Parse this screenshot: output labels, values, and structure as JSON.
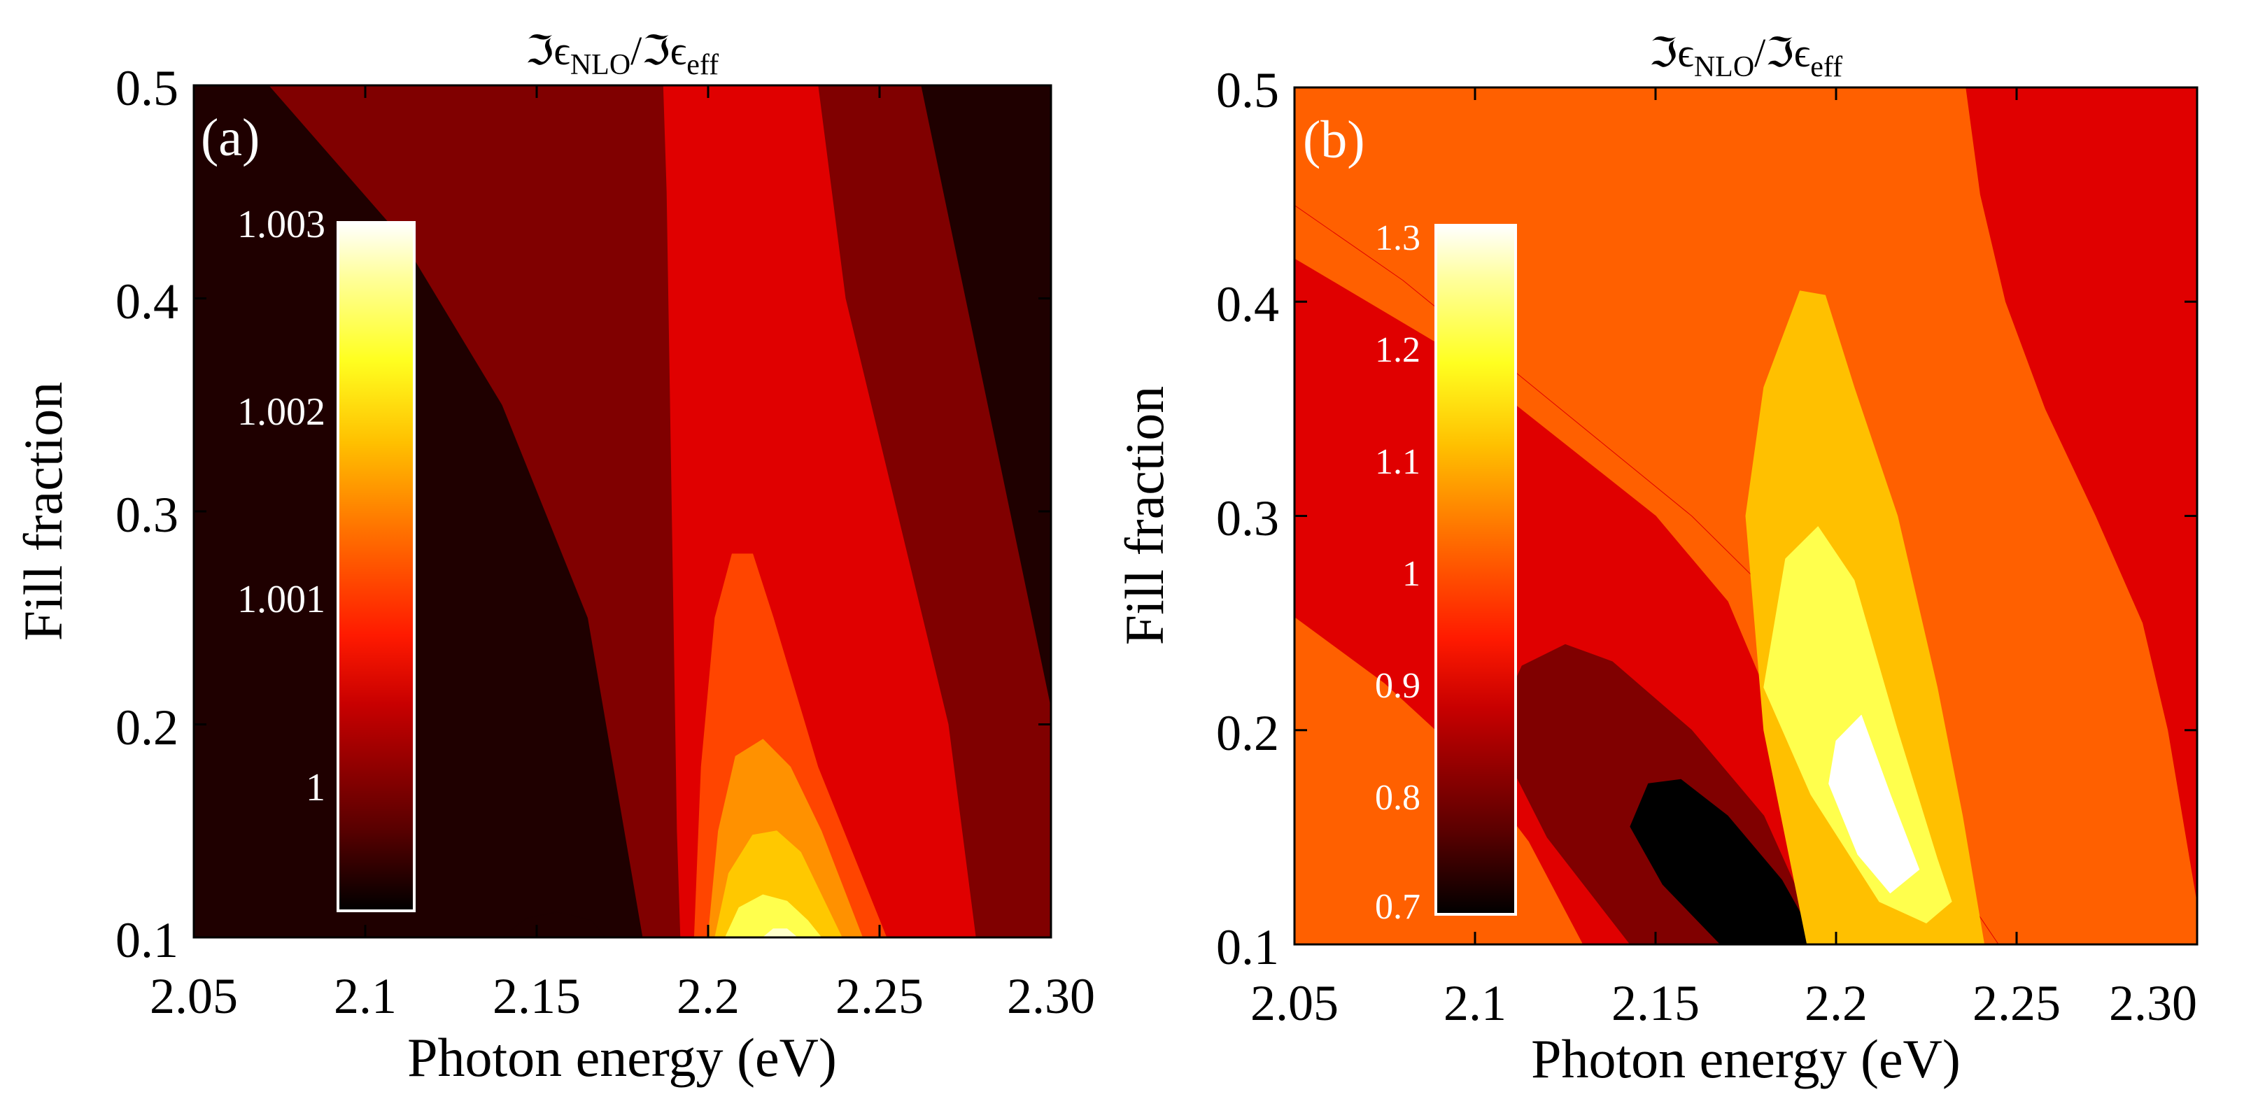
{
  "chart_data": [
    {
      "type": "contour",
      "panel_label": "(a)",
      "title": "ℑϵNLO/ℑϵeff",
      "title_parts": {
        "im1": "ℑϵ",
        "sub1": "NLO",
        "slash": "/",
        "im2": "ℑϵ",
        "sub2": "eff"
      },
      "xlabel": "Photon energy (eV)",
      "ylabel": "Fill fraction",
      "xlim": [
        2.05,
        2.3
      ],
      "ylim": [
        0.1,
        0.5
      ],
      "xticks": [
        2.05,
        2.1,
        2.15,
        2.2,
        2.25,
        2.3
      ],
      "xtick_labels": [
        "2.05",
        "2.1",
        "2.15",
        "2.2",
        "2.25",
        "2.30"
      ],
      "yticks": [
        0.1,
        0.2,
        0.3,
        0.4,
        0.5
      ],
      "ytick_labels": [
        "0.1",
        "0.2",
        "0.3",
        "0.4",
        "0.5"
      ],
      "colormap": "hot",
      "colorbar": {
        "range": [
          0.99955,
          1.00303
        ],
        "ticks": [
          1.0,
          1.001,
          1.002,
          1.003
        ],
        "tick_labels": [
          "1",
          "1.001",
          "1.002",
          "1.003"
        ]
      },
      "regions": [
        {
          "level": 0.99975,
          "color": "#1f0000",
          "points": [
            [
              2.05,
              0.1
            ],
            [
              2.05,
              0.5
            ],
            [
              2.072,
              0.5
            ],
            [
              2.11,
              0.43
            ],
            [
              2.14,
              0.35
            ],
            [
              2.165,
              0.25
            ],
            [
              2.181,
              0.1
            ]
          ]
        },
        {
          "level": 0.99975,
          "color": "#1f0000",
          "points": [
            [
              2.262,
              0.5
            ],
            [
              2.3,
              0.5
            ],
            [
              2.3,
              0.207
            ]
          ]
        },
        {
          "level": 0.9998,
          "color": "#1f0000",
          "points": [
            [
              2.14,
              0.1
            ],
            [
              2.147,
              0.109
            ],
            [
              2.156,
              0.112
            ],
            [
              2.166,
              0.108
            ],
            [
              2.17,
              0.1
            ]
          ]
        },
        {
          "level": 1.0,
          "color": "#800000",
          "points": [
            [
              2.072,
              0.5
            ],
            [
              2.187,
              0.5
            ],
            [
              2.188,
              0.45
            ],
            [
              2.189,
              0.35
            ],
            [
              2.19,
              0.25
            ],
            [
              2.191,
              0.15
            ],
            [
              2.192,
              0.1
            ],
            [
              2.181,
              0.1
            ],
            [
              2.165,
              0.25
            ],
            [
              2.14,
              0.35
            ],
            [
              2.11,
              0.43
            ]
          ]
        },
        {
          "level": 1.0,
          "color": "#800000",
          "points": [
            [
              2.232,
              0.5
            ],
            [
              2.262,
              0.5
            ],
            [
              2.3,
              0.207
            ],
            [
              2.3,
              0.1
            ],
            [
              2.278,
              0.1
            ],
            [
              2.27,
              0.2
            ],
            [
              2.255,
              0.3
            ],
            [
              2.24,
              0.4
            ]
          ]
        },
        {
          "level": 1.0003,
          "color": "#e00000",
          "points": [
            [
              2.187,
              0.5
            ],
            [
              2.232,
              0.5
            ],
            [
              2.24,
              0.4
            ],
            [
              2.255,
              0.3
            ],
            [
              2.27,
              0.2
            ],
            [
              2.278,
              0.1
            ],
            [
              2.192,
              0.1
            ],
            [
              2.191,
              0.15
            ],
            [
              2.19,
              0.25
            ],
            [
              2.189,
              0.35
            ],
            [
              2.188,
              0.45
            ]
          ]
        },
        {
          "level": 1.0008,
          "color": "#ff4500",
          "points": [
            [
              2.196,
              0.1
            ],
            [
              2.198,
              0.18
            ],
            [
              2.202,
              0.25
            ],
            [
              2.207,
              0.28
            ],
            [
              2.213,
              0.28
            ],
            [
              2.219,
              0.25
            ],
            [
              2.232,
              0.18
            ],
            [
              2.252,
              0.1
            ]
          ]
        },
        {
          "level": 1.0013,
          "color": "#ff9100",
          "points": [
            [
              2.2,
              0.1
            ],
            [
              2.203,
              0.15
            ],
            [
              2.208,
              0.185
            ],
            [
              2.216,
              0.193
            ],
            [
              2.224,
              0.18
            ],
            [
              2.233,
              0.15
            ],
            [
              2.245,
              0.1
            ]
          ]
        },
        {
          "level": 1.0018,
          "color": "#ffc800",
          "points": [
            [
              2.202,
              0.1
            ],
            [
              2.206,
              0.13
            ],
            [
              2.213,
              0.148
            ],
            [
              2.22,
              0.15
            ],
            [
              2.227,
              0.14
            ],
            [
              2.233,
              0.12
            ],
            [
              2.239,
              0.1
            ]
          ]
        },
        {
          "level": 1.0023,
          "color": "#ffff4d",
          "points": [
            [
              2.205,
              0.1
            ],
            [
              2.209,
              0.114
            ],
            [
              2.216,
              0.12
            ],
            [
              2.223,
              0.117
            ],
            [
              2.229,
              0.108
            ],
            [
              2.233,
              0.1
            ]
          ]
        },
        {
          "level": 1.0028,
          "color": "#ffffcc",
          "points": [
            [
              2.216,
              0.1
            ],
            [
              2.219,
              0.104
            ],
            [
              2.223,
              0.104
            ],
            [
              2.226,
              0.1
            ]
          ]
        }
      ]
    },
    {
      "type": "contour",
      "panel_label": "(b)",
      "title": "ℑϵNLO/ℑϵeff",
      "title_parts": {
        "im1": "ℑϵ",
        "sub1": "NLO",
        "slash": "/",
        "im2": "ℑϵ",
        "sub2": "eff"
      },
      "xlabel": "Photon energy (eV)",
      "ylabel": "Fill fraction",
      "xlim": [
        2.05,
        2.3
      ],
      "ylim": [
        0.1,
        0.5
      ],
      "xticks": [
        2.05,
        2.1,
        2.15,
        2.2,
        2.25,
        2.3
      ],
      "xtick_labels": [
        "2.05",
        "2.1",
        "2.15",
        "2.2",
        "2.25",
        "2.30"
      ],
      "yticks": [
        0.1,
        0.2,
        0.3,
        0.4,
        0.5
      ],
      "ytick_labels": [
        "0.1",
        "0.2",
        "0.3",
        "0.4",
        "0.5"
      ],
      "colormap": "hot",
      "colorbar": {
        "range": [
          0.693,
          1.305
        ],
        "ticks": [
          0.7,
          0.8,
          0.9,
          1.0,
          1.1,
          1.2,
          1.3
        ],
        "tick_labels": [
          "0.7",
          "0.8",
          "0.9",
          "1",
          "1.1",
          "1.2",
          "1.3"
        ]
      },
      "regions": [
        {
          "level": 1.0,
          "color": "#ff6000",
          "points": [
            [
              2.05,
              0.5
            ],
            [
              2.05,
              0.1
            ],
            [
              2.3,
              0.1
            ],
            [
              2.3,
              0.5
            ]
          ]
        },
        {
          "level": 0.9,
          "color": "#e00000",
          "points": [
            [
              2.05,
              0.445
            ],
            [
              2.08,
              0.41
            ],
            [
              2.12,
              0.355
            ],
            [
              2.16,
              0.3
            ],
            [
              2.19,
              0.25
            ],
            [
              2.205,
              0.2
            ],
            [
              2.225,
              0.15
            ],
            [
              2.245,
              0.1
            ],
            [
              2.3,
              0.1
            ],
            [
              2.3,
              0.5
            ],
            [
              2.236,
              0.5
            ],
            [
              2.24,
              0.45
            ],
            [
              2.247,
              0.4
            ],
            [
              2.258,
              0.35
            ],
            [
              2.272,
              0.3
            ],
            [
              2.285,
              0.25
            ],
            [
              2.292,
              0.2
            ],
            [
              2.297,
              0.15
            ],
            [
              2.3,
              0.12
            ],
            [
              2.3,
              0.1
            ],
            [
              2.245,
              0.1
            ],
            [
              2.225,
              0.15
            ],
            [
              2.205,
              0.2
            ],
            [
              2.19,
              0.25
            ],
            [
              2.16,
              0.3
            ],
            [
              2.12,
              0.355
            ],
            [
              2.08,
              0.41
            ],
            [
              2.05,
              0.445
            ]
          ]
        },
        {
          "level": 0.9,
          "color": "#e00000",
          "points": [
            [
              2.05,
              0.253
            ],
            [
              2.075,
              0.222
            ],
            [
              2.097,
              0.188
            ],
            [
              2.115,
              0.148
            ],
            [
              2.13,
              0.1
            ],
            [
              2.2,
              0.1
            ],
            [
              2.19,
              0.17
            ],
            [
              2.18,
              0.22
            ],
            [
              2.17,
              0.26
            ],
            [
              2.15,
              0.3
            ],
            [
              2.12,
              0.34
            ],
            [
              2.09,
              0.38
            ],
            [
              2.05,
              0.42
            ]
          ]
        },
        {
          "level": 0.87,
          "color": "#800000",
          "points": [
            [
              2.113,
              0.23
            ],
            [
              2.125,
              0.24
            ],
            [
              2.138,
              0.232
            ],
            [
              2.16,
              0.2
            ],
            [
              2.18,
              0.16
            ],
            [
              2.196,
              0.1
            ],
            [
              2.143,
              0.1
            ],
            [
              2.12,
              0.15
            ],
            [
              2.105,
              0.2
            ]
          ]
        },
        {
          "level": 0.75,
          "color": "#000000",
          "points": [
            [
              2.143,
              0.155
            ],
            [
              2.148,
              0.175
            ],
            [
              2.157,
              0.177
            ],
            [
              2.17,
              0.16
            ],
            [
              2.185,
              0.13
            ],
            [
              2.195,
              0.1
            ],
            [
              2.168,
              0.1
            ],
            [
              2.152,
              0.128
            ]
          ]
        },
        {
          "level": 1.05,
          "color": "#ffc000",
          "points": [
            [
              2.175,
              0.3
            ],
            [
              2.18,
              0.36
            ],
            [
              2.19,
              0.405
            ],
            [
              2.197,
              0.403
            ],
            [
              2.205,
              0.36
            ],
            [
              2.217,
              0.3
            ],
            [
              2.228,
              0.22
            ],
            [
              2.235,
              0.16
            ],
            [
              2.241,
              0.1
            ],
            [
              2.192,
              0.1
            ],
            [
              2.18,
              0.2
            ]
          ]
        },
        {
          "level": 1.15,
          "color": "#ffff4d",
          "points": [
            [
              2.18,
              0.22
            ],
            [
              2.186,
              0.28
            ],
            [
              2.195,
              0.295
            ],
            [
              2.205,
              0.27
            ],
            [
              2.217,
              0.2
            ],
            [
              2.228,
              0.14
            ],
            [
              2.232,
              0.12
            ],
            [
              2.225,
              0.11
            ],
            [
              2.212,
              0.12
            ],
            [
              2.193,
              0.17
            ]
          ]
        },
        {
          "level": 1.25,
          "color": "#ffffff",
          "points": [
            [
              2.2,
              0.195
            ],
            [
              2.207,
              0.207
            ],
            [
              2.215,
              0.17
            ],
            [
              2.223,
              0.135
            ],
            [
              2.215,
              0.124
            ],
            [
              2.206,
              0.142
            ],
            [
              2.198,
              0.175
            ]
          ]
        }
      ]
    }
  ]
}
